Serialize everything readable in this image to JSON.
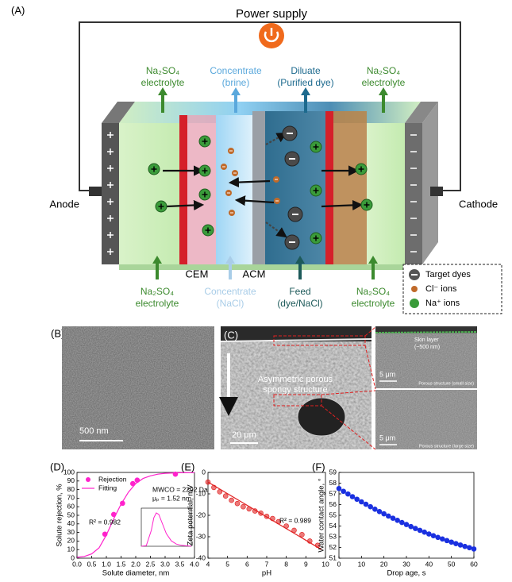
{
  "panel_a": {
    "label": "(A)",
    "power_supply": "Power supply",
    "anode": "Anode",
    "cathode": "Cathode",
    "cem": "CEM",
    "acm": "ACM",
    "top_labels": [
      {
        "line1": "Na₂SO₄",
        "line2": "electrolyte"
      },
      {
        "line1": "Concentrate",
        "line2": "(brine)"
      },
      {
        "line1": "Diluate",
        "line2": "(Purified dye)"
      },
      {
        "line1": "Na₂SO₄",
        "line2": "electrolyte"
      }
    ],
    "bottom_labels": [
      {
        "line1": "Na₂SO₄",
        "line2": "electrolyte"
      },
      {
        "line1": "Concentrate",
        "line2": "(NaCl)"
      },
      {
        "line1": "Feed",
        "line2": "(dye/NaCl)"
      },
      {
        "line1": "Na₂SO₄",
        "line2": "electrolyte"
      }
    ],
    "legend": [
      "Target dyes",
      "Cl⁻ ions",
      "Na⁺ ions"
    ]
  },
  "panel_b": {
    "label": "(B)",
    "scale_bar": "500 nm"
  },
  "panel_c": {
    "label": "(C)",
    "annotation": [
      "Asymmetric porous",
      "spongy structure"
    ],
    "scale_bar": "20 μm",
    "top_inset": {
      "title": "Skin layer",
      "subtitle": "(~500 nm)",
      "scale_bar": "5 μm",
      "caption": "Porous structure (small size)"
    },
    "bottom_inset": {
      "scale_bar": "5 μm",
      "caption": "Porous structure (large size)"
    }
  },
  "chart_data": [
    {
      "type": "scatter",
      "label": "(D)",
      "xlabel": "Solute diameter, nm",
      "ylabel": "Solute rejection, %",
      "xlim": [
        0,
        4
      ],
      "ylim": [
        0,
        100
      ],
      "xticks": [
        {
          "value": 0,
          "label": "0.0"
        },
        0.5,
        {
          "value": 1,
          "label": "1.0"
        },
        1.5,
        {
          "value": 2,
          "label": "2.0"
        },
        2.5,
        {
          "value": 3,
          "label": "3.0"
        },
        3.5,
        {
          "value": 4,
          "label": "4.0"
        }
      ],
      "yticks": [
        0,
        10,
        20,
        30,
        40,
        50,
        60,
        70,
        80,
        90,
        100
      ],
      "series": [
        {
          "name": "Rejection",
          "color": "#ff22cc",
          "mode": "markers",
          "x": [
            0.95,
            1.25,
            1.55,
            1.9,
            2.05,
            3.35
          ],
          "values": [
            28,
            51,
            64,
            87,
            91,
            98
          ]
        },
        {
          "name": "Fitting",
          "color": "#ff22cc",
          "mode": "line",
          "x": [
            0,
            0.25,
            0.5,
            0.75,
            1.0,
            1.25,
            1.5,
            1.75,
            2.0,
            2.25,
            2.5,
            2.75,
            3.0,
            3.5,
            4.0
          ],
          "values": [
            1,
            2,
            5,
            12,
            27,
            46,
            63,
            77,
            87,
            93,
            96,
            98,
            99,
            99.6,
            99.9
          ]
        }
      ],
      "annotations": [
        "MWCO = 2292 Da",
        "μₚ = 1.52 nm",
        "R² = 0.982"
      ],
      "inset": {
        "color": "#ff22cc",
        "xlim": [
          0,
          5
        ],
        "ylim": [
          0,
          1.2
        ],
        "x": [
          0,
          0.5,
          1.0,
          1.25,
          1.5,
          1.75,
          2.0,
          2.5,
          3.0,
          3.5,
          4.0,
          5.0
        ],
        "values": [
          0,
          0.02,
          0.5,
          0.9,
          1.05,
          1.0,
          0.8,
          0.4,
          0.17,
          0.07,
          0.03,
          0
        ]
      }
    },
    {
      "type": "scatter",
      "label": "(E)",
      "xlabel": "pH",
      "ylabel": "Zeta potential, mV",
      "xlim": [
        4,
        10
      ],
      "ylim": [
        -40,
        0
      ],
      "xticks": [
        4,
        5,
        6,
        7,
        8,
        9,
        10
      ],
      "yticks": [
        -40,
        -30,
        -20,
        -10,
        0
      ],
      "series": [
        {
          "color": "#e02020",
          "mode": "markers",
          "x": [
            4.0,
            4.3,
            4.6,
            4.9,
            5.2,
            5.5,
            5.8,
            6.1,
            6.4,
            6.7,
            7.0,
            7.3,
            7.6,
            8.0,
            8.4,
            8.8,
            9.2,
            9.6
          ],
          "values": [
            -4.5,
            -7,
            -9,
            -11,
            -13,
            -14.5,
            -16,
            -17,
            -18,
            -19,
            -20.5,
            -21.5,
            -23,
            -25,
            -27,
            -29,
            -32,
            -34
          ]
        },
        {
          "color": "#e02020",
          "mode": "line",
          "x": [
            4.0,
            9.8
          ],
          "values": [
            -4.5,
            -36
          ]
        }
      ],
      "annotations": [
        "R² = 0.989"
      ]
    },
    {
      "type": "scatter",
      "label": "(F)",
      "xlabel": "Drop age, s",
      "ylabel": "Water contact angle, °",
      "xlim": [
        0,
        60
      ],
      "ylim": [
        51,
        59
      ],
      "xticks": [
        0,
        10,
        20,
        30,
        40,
        50,
        60
      ],
      "yticks": [
        51,
        52,
        53,
        54,
        55,
        56,
        57,
        58,
        59
      ],
      "series": [
        {
          "color": "#1a30e0",
          "mode": "markers",
          "x": [
            0,
            2,
            4,
            6,
            8,
            10,
            12,
            14,
            16,
            18,
            20,
            22,
            24,
            26,
            28,
            30,
            32,
            34,
            36,
            38,
            40,
            42,
            44,
            46,
            48,
            50,
            52,
            54,
            56,
            58,
            60
          ],
          "values": [
            57.5,
            57.24,
            56.99,
            56.74,
            56.5,
            56.26,
            56.03,
            55.8,
            55.57,
            55.35,
            55.14,
            54.93,
            54.73,
            54.53,
            54.33,
            54.14,
            53.95,
            53.77,
            53.6,
            53.43,
            53.26,
            53.1,
            52.94,
            52.79,
            52.64,
            52.5,
            52.36,
            52.23,
            52.1,
            51.98,
            51.86
          ]
        }
      ],
      "annotations": []
    }
  ]
}
